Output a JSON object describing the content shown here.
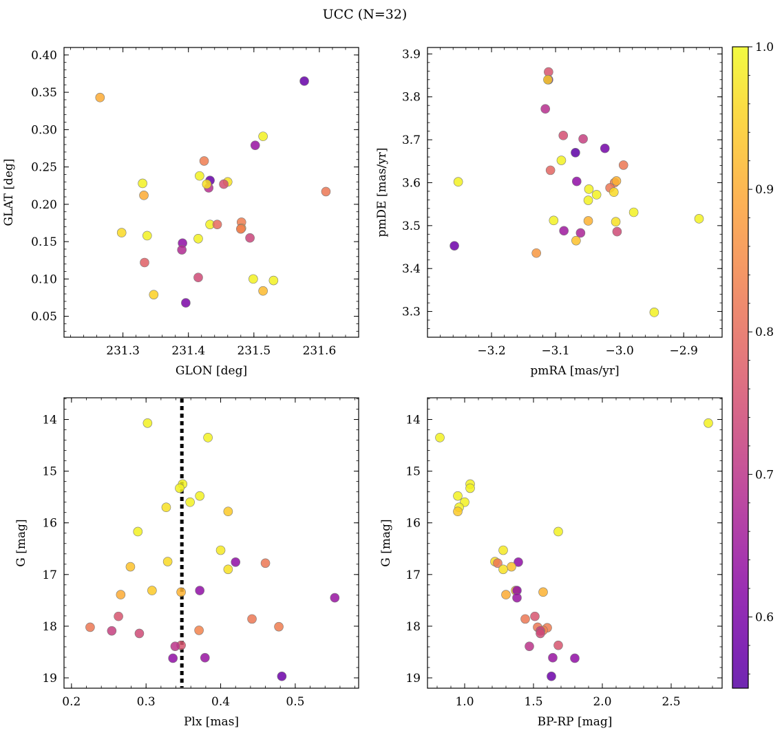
{
  "figure": {
    "title": "UCC (N=32)"
  },
  "colorbar": {
    "min": 0.55,
    "max": 1.0,
    "ticks": [
      0.6,
      0.7,
      0.8,
      0.9,
      1.0
    ],
    "tick_labels": [
      "0.6",
      "0.7",
      "0.8",
      "0.9",
      "1.0"
    ],
    "colormap": "plasma"
  },
  "chart_data": [
    {
      "id": "glon-glat",
      "type": "scatter",
      "xlabel": "GLON [deg]",
      "ylabel": "GLAT [deg]",
      "xlim": [
        231.21,
        231.66
      ],
      "ylim": [
        0.022,
        0.41
      ],
      "yinvert": false,
      "xticks": [
        231.3,
        231.4,
        231.5,
        231.6
      ],
      "xtick_labels": [
        "231.3",
        "231.4",
        "231.5",
        "231.6"
      ],
      "yticks": [
        0.05,
        0.1,
        0.15,
        0.2,
        0.25,
        0.3,
        0.35,
        0.4
      ],
      "ytick_labels": [
        "0.05",
        "0.10",
        "0.15",
        "0.20",
        "0.25",
        "0.30",
        "0.35",
        "0.40"
      ],
      "points": [
        {
          "x": 231.577,
          "y": 0.365,
          "c": 0.57
        },
        {
          "x": 231.265,
          "y": 0.343,
          "c": 0.9
        },
        {
          "x": 231.514,
          "y": 0.291,
          "c": 0.99
        },
        {
          "x": 231.502,
          "y": 0.279,
          "c": 0.64
        },
        {
          "x": 231.424,
          "y": 0.258,
          "c": 0.83
        },
        {
          "x": 231.417,
          "y": 0.238,
          "c": 0.99
        },
        {
          "x": 231.433,
          "y": 0.232,
          "c": 0.57
        },
        {
          "x": 231.431,
          "y": 0.222,
          "c": 0.69
        },
        {
          "x": 231.428,
          "y": 0.227,
          "c": 0.97
        },
        {
          "x": 231.46,
          "y": 0.23,
          "c": 0.97
        },
        {
          "x": 231.454,
          "y": 0.227,
          "c": 0.75
        },
        {
          "x": 231.33,
          "y": 0.228,
          "c": 0.99
        },
        {
          "x": 231.332,
          "y": 0.212,
          "c": 0.9
        },
        {
          "x": 231.61,
          "y": 0.217,
          "c": 0.82
        },
        {
          "x": 231.433,
          "y": 0.173,
          "c": 0.99
        },
        {
          "x": 231.444,
          "y": 0.173,
          "c": 0.8
        },
        {
          "x": 231.481,
          "y": 0.176,
          "c": 0.83
        },
        {
          "x": 231.481,
          "y": 0.168,
          "c": 0.88
        },
        {
          "x": 231.48,
          "y": 0.167,
          "c": 0.83
        },
        {
          "x": 231.298,
          "y": 0.162,
          "c": 0.96
        },
        {
          "x": 231.337,
          "y": 0.158,
          "c": 0.99
        },
        {
          "x": 231.494,
          "y": 0.155,
          "c": 0.73
        },
        {
          "x": 231.415,
          "y": 0.154,
          "c": 0.99
        },
        {
          "x": 231.391,
          "y": 0.148,
          "c": 0.63
        },
        {
          "x": 231.39,
          "y": 0.139,
          "c": 0.68
        },
        {
          "x": 231.333,
          "y": 0.122,
          "c": 0.78
        },
        {
          "x": 231.415,
          "y": 0.102,
          "c": 0.74
        },
        {
          "x": 231.499,
          "y": 0.1,
          "c": 0.99
        },
        {
          "x": 231.53,
          "y": 0.098,
          "c": 0.99
        },
        {
          "x": 231.514,
          "y": 0.084,
          "c": 0.92
        },
        {
          "x": 231.347,
          "y": 0.079,
          "c": 0.95
        },
        {
          "x": 231.396,
          "y": 0.068,
          "c": 0.6
        }
      ]
    },
    {
      "id": "pm",
      "type": "scatter",
      "xlabel": "pmRA [mas/yr]",
      "ylabel": "pmDE [mas/yr]",
      "xlim": [
        -3.3,
        -2.84
      ],
      "ylim": [
        3.24,
        3.915
      ],
      "yinvert": false,
      "xticks": [
        -3.2,
        -3.1,
        -3.0,
        -2.9
      ],
      "xtick_labels": [
        "−3.2",
        "−3.1",
        "−3.0",
        "−2.9"
      ],
      "yticks": [
        3.3,
        3.4,
        3.5,
        3.6,
        3.7,
        3.8,
        3.9
      ],
      "ytick_labels": [
        "3.3",
        "3.4",
        "3.5",
        "3.6",
        "3.7",
        "3.8",
        "3.9"
      ],
      "points": [
        {
          "x": -3.111,
          "y": 3.858,
          "c": 0.76
        },
        {
          "x": -3.111,
          "y": 3.84,
          "c": 0.57
        },
        {
          "x": -3.112,
          "y": 3.84,
          "c": 0.95
        },
        {
          "x": -3.116,
          "y": 3.772,
          "c": 0.69
        },
        {
          "x": -3.088,
          "y": 3.71,
          "c": 0.75
        },
        {
          "x": -3.057,
          "y": 3.702,
          "c": 0.72
        },
        {
          "x": -3.023,
          "y": 3.68,
          "c": 0.59
        },
        {
          "x": -3.069,
          "y": 3.67,
          "c": 0.56
        },
        {
          "x": -3.091,
          "y": 3.652,
          "c": 0.99
        },
        {
          "x": -2.994,
          "y": 3.641,
          "c": 0.82
        },
        {
          "x": -3.108,
          "y": 3.629,
          "c": 0.79
        },
        {
          "x": -3.252,
          "y": 3.602,
          "c": 0.99
        },
        {
          "x": -3.067,
          "y": 3.603,
          "c": 0.63
        },
        {
          "x": -3.008,
          "y": 3.6,
          "c": 0.83
        },
        {
          "x": -3.005,
          "y": 3.604,
          "c": 0.91
        },
        {
          "x": -3.015,
          "y": 3.588,
          "c": 0.82
        },
        {
          "x": -3.048,
          "y": 3.585,
          "c": 0.99
        },
        {
          "x": -3.009,
          "y": 3.578,
          "c": 0.96
        },
        {
          "x": -3.036,
          "y": 3.572,
          "c": 0.99
        },
        {
          "x": -3.049,
          "y": 3.559,
          "c": 0.99
        },
        {
          "x": -2.978,
          "y": 3.531,
          "c": 0.99
        },
        {
          "x": -2.876,
          "y": 3.516,
          "c": 0.99
        },
        {
          "x": -3.103,
          "y": 3.512,
          "c": 0.99
        },
        {
          "x": -3.049,
          "y": 3.511,
          "c": 0.91
        },
        {
          "x": -3.006,
          "y": 3.509,
          "c": 0.97
        },
        {
          "x": -3.087,
          "y": 3.488,
          "c": 0.65
        },
        {
          "x": -3.061,
          "y": 3.483,
          "c": 0.67
        },
        {
          "x": -3.004,
          "y": 3.486,
          "c": 0.74
        },
        {
          "x": -3.068,
          "y": 3.465,
          "c": 0.93
        },
        {
          "x": -3.258,
          "y": 3.453,
          "c": 0.58
        },
        {
          "x": -3.13,
          "y": 3.436,
          "c": 0.87
        },
        {
          "x": -2.946,
          "y": 3.298,
          "c": 0.99
        }
      ]
    },
    {
      "id": "plx-g",
      "type": "scatter",
      "xlabel": "Plx [mas]",
      "ylabel": "G [mag]",
      "xlim": [
        0.19,
        0.585
      ],
      "ylim": [
        13.58,
        19.2
      ],
      "yinvert": true,
      "vline": 0.348,
      "xticks": [
        0.2,
        0.3,
        0.4,
        0.5
      ],
      "xtick_labels": [
        "0.2",
        "0.3",
        "0.4",
        "0.5"
      ],
      "yticks": [
        14,
        15,
        16,
        17,
        18,
        19
      ],
      "ytick_labels": [
        "14",
        "15",
        "16",
        "17",
        "18",
        "19"
      ],
      "points": [
        {
          "x": 0.302,
          "y": 14.07,
          "c": 0.99
        },
        {
          "x": 0.383,
          "y": 14.35,
          "c": 0.99
        },
        {
          "x": 0.349,
          "y": 15.25,
          "c": 0.99
        },
        {
          "x": 0.345,
          "y": 15.33,
          "c": 0.99
        },
        {
          "x": 0.372,
          "y": 15.48,
          "c": 0.99
        },
        {
          "x": 0.359,
          "y": 15.6,
          "c": 0.99
        },
        {
          "x": 0.327,
          "y": 15.7,
          "c": 0.97
        },
        {
          "x": 0.41,
          "y": 15.78,
          "c": 0.94
        },
        {
          "x": 0.289,
          "y": 16.17,
          "c": 0.99
        },
        {
          "x": 0.4,
          "y": 16.53,
          "c": 0.98
        },
        {
          "x": 0.42,
          "y": 16.76,
          "c": 0.63
        },
        {
          "x": 0.46,
          "y": 16.78,
          "c": 0.82
        },
        {
          "x": 0.329,
          "y": 16.75,
          "c": 0.96
        },
        {
          "x": 0.279,
          "y": 16.85,
          "c": 0.93
        },
        {
          "x": 0.41,
          "y": 16.9,
          "c": 0.97
        },
        {
          "x": 0.308,
          "y": 17.31,
          "c": 0.94
        },
        {
          "x": 0.372,
          "y": 17.31,
          "c": 0.63
        },
        {
          "x": 0.347,
          "y": 17.34,
          "c": 0.91
        },
        {
          "x": 0.266,
          "y": 17.39,
          "c": 0.9
        },
        {
          "x": 0.553,
          "y": 17.45,
          "c": 0.64
        },
        {
          "x": 0.263,
          "y": 17.81,
          "c": 0.76
        },
        {
          "x": 0.442,
          "y": 17.86,
          "c": 0.82
        },
        {
          "x": 0.225,
          "y": 18.02,
          "c": 0.82
        },
        {
          "x": 0.478,
          "y": 18.01,
          "c": 0.83
        },
        {
          "x": 0.371,
          "y": 18.08,
          "c": 0.84
        },
        {
          "x": 0.254,
          "y": 18.09,
          "c": 0.72
        },
        {
          "x": 0.291,
          "y": 18.14,
          "c": 0.74
        },
        {
          "x": 0.347,
          "y": 18.37,
          "c": 0.76
        },
        {
          "x": 0.339,
          "y": 18.39,
          "c": 0.7
        },
        {
          "x": 0.336,
          "y": 18.62,
          "c": 0.63
        },
        {
          "x": 0.379,
          "y": 18.61,
          "c": 0.64
        },
        {
          "x": 0.482,
          "y": 18.97,
          "c": 0.58
        }
      ]
    },
    {
      "id": "color-g",
      "type": "scatter",
      "xlabel": "BP-RP [mag]",
      "ylabel": "G [mag]",
      "xlim": [
        0.73,
        2.87
      ],
      "ylim": [
        13.58,
        19.2
      ],
      "yinvert": true,
      "xticks": [
        1.0,
        1.5,
        2.0,
        2.5
      ],
      "xtick_labels": [
        "1.0",
        "1.5",
        "2.0",
        "2.5"
      ],
      "yticks": [
        14,
        15,
        16,
        17,
        18,
        19
      ],
      "ytick_labels": [
        "14",
        "15",
        "16",
        "17",
        "18",
        "19"
      ],
      "points": [
        {
          "x": 0.82,
          "y": 14.35,
          "c": 0.99
        },
        {
          "x": 2.77,
          "y": 14.07,
          "c": 0.99
        },
        {
          "x": 1.04,
          "y": 15.25,
          "c": 0.99
        },
        {
          "x": 1.04,
          "y": 15.33,
          "c": 0.99
        },
        {
          "x": 0.95,
          "y": 15.48,
          "c": 0.99
        },
        {
          "x": 1.0,
          "y": 15.6,
          "c": 0.99
        },
        {
          "x": 0.96,
          "y": 15.7,
          "c": 0.99
        },
        {
          "x": 0.95,
          "y": 15.78,
          "c": 0.94
        },
        {
          "x": 1.68,
          "y": 16.17,
          "c": 0.99
        },
        {
          "x": 1.28,
          "y": 16.53,
          "c": 0.98
        },
        {
          "x": 1.39,
          "y": 16.76,
          "c": 0.63
        },
        {
          "x": 1.22,
          "y": 16.75,
          "c": 0.96
        },
        {
          "x": 1.24,
          "y": 16.78,
          "c": 0.82
        },
        {
          "x": 1.34,
          "y": 16.85,
          "c": 0.93
        },
        {
          "x": 1.28,
          "y": 16.9,
          "c": 0.97
        },
        {
          "x": 1.37,
          "y": 17.31,
          "c": 0.94
        },
        {
          "x": 1.38,
          "y": 17.31,
          "c": 0.63
        },
        {
          "x": 1.57,
          "y": 17.34,
          "c": 0.91
        },
        {
          "x": 1.3,
          "y": 17.39,
          "c": 0.9
        },
        {
          "x": 1.38,
          "y": 17.45,
          "c": 0.64
        },
        {
          "x": 1.51,
          "y": 17.81,
          "c": 0.76
        },
        {
          "x": 1.44,
          "y": 17.86,
          "c": 0.82
        },
        {
          "x": 1.53,
          "y": 18.02,
          "c": 0.82
        },
        {
          "x": 1.6,
          "y": 18.03,
          "c": 0.83
        },
        {
          "x": 1.57,
          "y": 18.08,
          "c": 0.84
        },
        {
          "x": 1.55,
          "y": 18.09,
          "c": 0.72
        },
        {
          "x": 1.55,
          "y": 18.14,
          "c": 0.74
        },
        {
          "x": 1.68,
          "y": 18.37,
          "c": 0.76
        },
        {
          "x": 1.47,
          "y": 18.39,
          "c": 0.7
        },
        {
          "x": 1.8,
          "y": 18.62,
          "c": 0.63
        },
        {
          "x": 1.64,
          "y": 18.61,
          "c": 0.64
        },
        {
          "x": 1.63,
          "y": 18.97,
          "c": 0.58
        }
      ]
    }
  ]
}
